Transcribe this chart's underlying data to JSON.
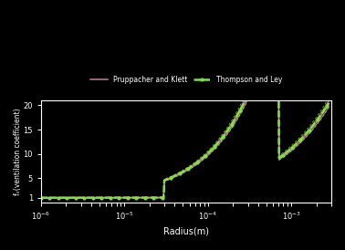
{
  "xlabel": "Radius(m)",
  "ylabel": "fᵥ(ventilation coefficient)",
  "legend_labels": [
    "Pruppacher and Klett",
    "Thompson and Ley"
  ],
  "bg_color": "#000000",
  "text_color": "#ffffff",
  "pk_color": "#cc8899",
  "tl_color": "#88dd44",
  "xmin": 1e-06,
  "xmax": 0.003,
  "ymin": 0,
  "ymax": 21,
  "yticks": [
    1,
    5,
    10,
    15,
    20
  ],
  "figsize": [
    3.78,
    2.74
  ],
  "dpi": 100
}
